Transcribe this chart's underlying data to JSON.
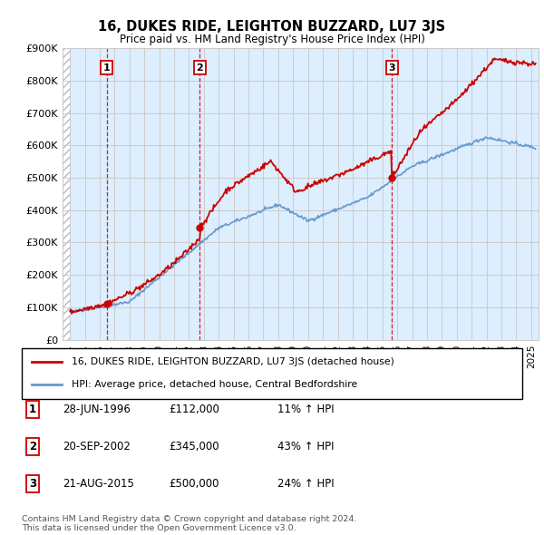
{
  "title": "16, DUKES RIDE, LEIGHTON BUZZARD, LU7 3JS",
  "subtitle": "Price paid vs. HM Land Registry's House Price Index (HPI)",
  "red_line_label": "16, DUKES RIDE, LEIGHTON BUZZARD, LU7 3JS (detached house)",
  "blue_line_label": "HPI: Average price, detached house, Central Bedfordshire",
  "footer": "Contains HM Land Registry data © Crown copyright and database right 2024.\nThis data is licensed under the Open Government Licence v3.0.",
  "transactions": [
    {
      "num": 1,
      "date": "28-JUN-1996",
      "price": 112000,
      "hpi_pct": "11% ↑ HPI",
      "year": 1996.47
    },
    {
      "num": 2,
      "date": "20-SEP-2002",
      "price": 345000,
      "hpi_pct": "43% ↑ HPI",
      "year": 2002.72
    },
    {
      "num": 3,
      "date": "21-AUG-2015",
      "price": 500000,
      "hpi_pct": "24% ↑ HPI",
      "year": 2015.64
    }
  ],
  "ylim": [
    0,
    900000
  ],
  "xlim_start": 1993.5,
  "xlim_end": 2025.5,
  "yticks": [
    0,
    100000,
    200000,
    300000,
    400000,
    500000,
    600000,
    700000,
    800000,
    900000
  ],
  "ytick_labels": [
    "£0",
    "£100K",
    "£200K",
    "£300K",
    "£400K",
    "£500K",
    "£600K",
    "£700K",
    "£800K",
    "£900K"
  ],
  "xticks": [
    1994,
    1995,
    1996,
    1997,
    1998,
    1999,
    2000,
    2001,
    2002,
    2003,
    2004,
    2005,
    2006,
    2007,
    2008,
    2009,
    2010,
    2011,
    2012,
    2013,
    2014,
    2015,
    2016,
    2017,
    2018,
    2019,
    2020,
    2021,
    2022,
    2023,
    2024,
    2025
  ],
  "red_color": "#cc0000",
  "blue_color": "#6699cc",
  "grid_color": "#cccccc",
  "bg_color": "#ddeeff",
  "hatch_color": "#bbbbbb"
}
